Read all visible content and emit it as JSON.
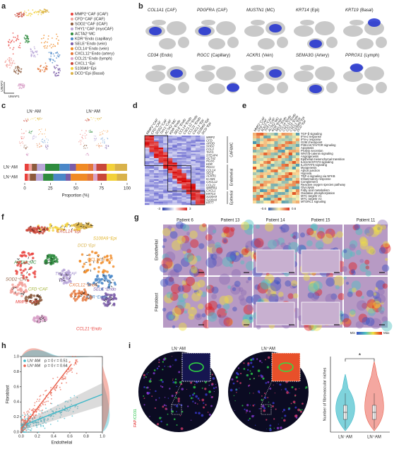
{
  "panels": {
    "a": {
      "letter": "a",
      "axes": [
        "UMAP1",
        "UMAP2"
      ],
      "legend": [
        {
          "label": "MMP2⁺CAF (iCAF)",
          "color": "#e8413c"
        },
        {
          "label": "CFD⁺CAF (iCAF)",
          "color": "#f2a09a"
        },
        {
          "label": "SOD2⁺CAF (iCAF)",
          "color": "#8c5a3c"
        },
        {
          "label": "THY1⁺CAF (myoCAF)",
          "color": "#b9a6d8"
        },
        {
          "label": "ACTA2⁺MC",
          "color": "#2e8b3e"
        },
        {
          "label": "KDR⁺Endo (capillary)",
          "color": "#4a87c8"
        },
        {
          "label": "SELE⁺Endo (vein)",
          "color": "#7a5ca8"
        },
        {
          "label": "CCL14⁺Endo (vein)",
          "color": "#f08a24"
        },
        {
          "label": "CXCL12⁺Endo (artery)",
          "color": "#e3763a"
        },
        {
          "label": "CCL21⁺Endo (lymph)",
          "color": "#d9a3c9"
        },
        {
          "label": "CXCL1⁺Epi",
          "color": "#c9473a"
        },
        {
          "label": "S100A9⁺Epi",
          "color": "#f3d13a"
        },
        {
          "label": "DCD⁺Epi (Basal)",
          "color": "#d9b24a"
        }
      ]
    },
    "b": {
      "letter": "b",
      "genes": [
        {
          "gene": "COL1A1",
          "cell": "(CAF)"
        },
        {
          "gene": "PDGFRA",
          "cell": "(CAF)"
        },
        {
          "gene": "MUSTN1",
          "cell": "(MC)"
        },
        {
          "gene": "KRT14",
          "cell": "(Epi)"
        },
        {
          "gene": "KRT19",
          "cell": "(Basal)"
        },
        {
          "gene": "CD34",
          "cell": "(Endo)"
        },
        {
          "gene": "RGCC",
          "cell": "(Capillary)"
        },
        {
          "gene": "ACKR1",
          "cell": "(Vein)"
        },
        {
          "gene": "SEMA3G",
          "cell": "(Artery)"
        },
        {
          "gene": "PPROX1",
          "cell": "(Lymph)"
        }
      ]
    },
    "c": {
      "letter": "c",
      "titles": [
        "LN⁻AM",
        "LN⁺AM"
      ],
      "xlabel": "Proportion (%)",
      "xlim": [
        0,
        100
      ],
      "xticks": [
        0,
        25,
        50,
        75,
        100
      ],
      "bars": [
        {
          "name": "LN⁻AM",
          "values": [
            4,
            3,
            5,
            8,
            14,
            10,
            6,
            12,
            5,
            3,
            10,
            8,
            12
          ]
        },
        {
          "name": "LN⁺AM",
          "values": [
            3,
            2,
            6,
            7,
            10,
            12,
            5,
            16,
            6,
            4,
            9,
            10,
            10
          ]
        }
      ]
    },
    "d": {
      "letter": "d",
      "columns": [
        "MMP2⁺CAF",
        "CFD⁺CAF",
        "SOD2⁺CAF",
        "THY1⁺CAF",
        "ACTA2⁺MC",
        "KDR⁺Endo",
        "SELE⁺Endo",
        "CCL14⁺Endo",
        "CXCL12⁺Endo",
        "CCL21⁺Endo",
        "CXCL1⁺Epi",
        "S100A9⁺Epi",
        "DCD⁺Epi"
      ],
      "genes": [
        "MMP2",
        "CFD",
        "APOD",
        "SOD2",
        "CCL2",
        "THY1",
        "STEAP4",
        "ACTA2",
        "RGS5",
        "KDR",
        "RGCC",
        "CCL14",
        "SELE",
        "ACKR1",
        "ICAM1",
        "CXCL12",
        "CCL21",
        "MMRN1",
        "CXCL1",
        "KRT14",
        "S100A9",
        "S100A8",
        "KRT7"
      ],
      "groups": [
        "CAF&MC",
        "Endothelial",
        "Epithelial"
      ],
      "colorbar": [
        -3,
        3
      ]
    },
    "e": {
      "letter": "e",
      "pathways": [
        "TGF-β signaling",
        "IFN-α response",
        "IFN-γ response",
        "G2M checkpoint",
        "PI3K/AKT/mTOR signaling",
        "Apoptosis",
        "Protein secretion",
        "WNT/β-catenin signaling",
        "Angiogenesis",
        "Epithelial mesenchymal transition",
        "IL6/JAK/STAT3 signaling",
        "IL2/STAT5 signaling",
        "Myogenesis",
        "Apical junction",
        "Hypoxia",
        "TNF-α signaling via NFKB",
        "Inflammatory response",
        "Complement",
        "Reactive oxygen species pathway",
        "Glycolysis",
        "Fatty acid metabolism",
        "Oxidative phosphorylation",
        "MYC targets V1",
        "MYC targets V2",
        "MTORC1 signaling"
      ],
      "colorbar": [
        -0.6,
        0.6
      ]
    },
    "f": {
      "letter": "f",
      "labels": [
        {
          "text": "CXCL14⁺Epi",
          "color": "#c9473a"
        },
        {
          "text": "DCD⁺Epi",
          "color": "#d9b24a"
        },
        {
          "text": "S100A9⁺Epi",
          "color": "#e0b020"
        },
        {
          "text": "ACTA2⁺MC",
          "color": "#2e8b3e"
        },
        {
          "text": "CCL14⁺Endo",
          "color": "#f08a24"
        },
        {
          "text": "THY1⁺CAF",
          "color": "#9a86c8"
        },
        {
          "text": "SOD2⁺CAF",
          "color": "#8c5a3c"
        },
        {
          "text": "CFD⁺CAF",
          "color": "#a0b030"
        },
        {
          "text": "CXCL12⁺Endo",
          "color": "#e3763a"
        },
        {
          "text": "SELE⁺Endo",
          "color": "#7a5ca8"
        },
        {
          "text": "KDR⁺Endo",
          "color": "#4a87c8"
        },
        {
          "text": "MMP2⁺CAF",
          "color": "#e8413c"
        },
        {
          "text": "CCL21⁺Endo",
          "color": "#e8413c"
        }
      ]
    },
    "g": {
      "letter": "g",
      "patients": [
        "Patient 6",
        "Patient 13",
        "Patient 14",
        "Patient 15",
        "Patient 11"
      ],
      "rows": [
        "Endothelial",
        "Fibroblast"
      ],
      "scale": [
        "Min",
        "Max"
      ]
    },
    "h": {
      "letter": "h",
      "xlabel": "Endothelial",
      "ylabel": "Fibroblast",
      "xlim": [
        0,
        1
      ],
      "ylim": [
        0,
        1
      ],
      "xticks": [
        {
          "value": 0,
          "label": "0.0"
        },
        {
          "value": 0.2,
          "label": "0.2"
        },
        {
          "value": 0.4,
          "label": "0.4"
        },
        {
          "value": 0.6,
          "label": "0.6"
        },
        {
          "value": 0.8,
          "label": "0.8"
        },
        {
          "value": 1,
          "label": "1.0"
        }
      ],
      "yticks": [
        {
          "value": 0,
          "label": "0.0"
        },
        {
          "value": 0.2,
          "label": "0.2"
        },
        {
          "value": 0.4,
          "label": "0.4"
        },
        {
          "value": 0.6,
          "label": "0.6"
        },
        {
          "value": 0.8,
          "label": "0.8"
        },
        {
          "value": 1,
          "label": "1.0"
        }
      ],
      "series": [
        {
          "name": "LN⁻AM",
          "stats": "p = 0  r = 0.51",
          "color": "#3fb8c9",
          "fit_x": [
            0,
            1
          ],
          "fit_y": [
            0.08,
            0.5
          ]
        },
        {
          "name": "LN⁺AM",
          "stats": "p = 0  r = 0.64",
          "color": "#e8604c",
          "fit_x": [
            0,
            0.62
          ],
          "fit_y": [
            0.04,
            0.9
          ]
        }
      ]
    },
    "i": {
      "letter": "i",
      "titles": [
        "LN⁻AM",
        "LN⁺AM"
      ],
      "stains": [
        "FAP",
        "/CD31"
      ],
      "ylabel": "Number of fibrovascular niches",
      "categories": [
        "LN⁻AM",
        "LN⁺AM"
      ],
      "significance": "*"
    }
  }
}
